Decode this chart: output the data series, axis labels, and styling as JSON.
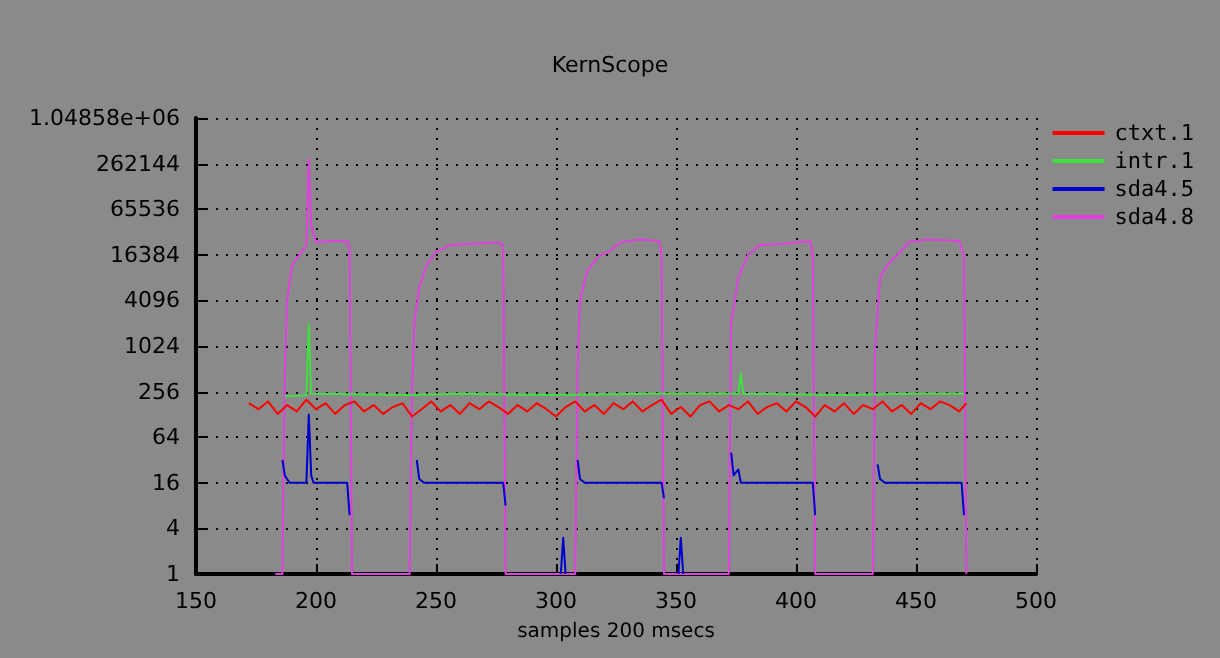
{
  "chart_data": {
    "type": "line",
    "title": "KernScope",
    "xlabel": "samples 200 msecs",
    "xlim": [
      150,
      500
    ],
    "xticks": [
      150,
      200,
      250,
      300,
      350,
      400,
      450,
      500
    ],
    "ylim": [
      1,
      1048576
    ],
    "yticks": [
      1,
      4,
      16,
      64,
      256,
      1024,
      4096,
      16384,
      65536,
      262144,
      {
        "value": 1048576,
        "label": "1.04858e+06"
      }
    ],
    "log": "y",
    "grid": true,
    "legend": "top right",
    "marker": "none",
    "line_style": "solid",
    "series": [
      {
        "name": "ctxt.1",
        "color": "#ff0000",
        "x": [
          172,
          176,
          180,
          184,
          188,
          192,
          196,
          200,
          204,
          208,
          212,
          216,
          220,
          224,
          228,
          232,
          236,
          240,
          244,
          248,
          252,
          256,
          260,
          264,
          268,
          272,
          276,
          280,
          284,
          288,
          292,
          296,
          300,
          304,
          308,
          312,
          316,
          320,
          324,
          328,
          332,
          336,
          340,
          344,
          348,
          352,
          356,
          360,
          364,
          368,
          372,
          376,
          380,
          384,
          388,
          392,
          396,
          400,
          404,
          408,
          412,
          416,
          420,
          424,
          428,
          432,
          436,
          440,
          444,
          448,
          452,
          456,
          460,
          464,
          468,
          471
        ],
        "values": [
          180,
          150,
          190,
          130,
          170,
          140,
          200,
          150,
          180,
          130,
          170,
          190,
          140,
          170,
          130,
          160,
          180,
          120,
          150,
          190,
          140,
          170,
          130,
          180,
          150,
          190,
          160,
          130,
          170,
          140,
          180,
          150,
          120,
          160,
          190,
          140,
          170,
          130,
          180,
          150,
          190,
          140,
          170,
          200,
          130,
          160,
          120,
          170,
          190,
          140,
          170,
          150,
          190,
          130,
          160,
          180,
          140,
          190,
          160,
          120,
          170,
          140,
          180,
          130,
          170,
          150,
          190,
          140,
          170,
          130,
          180,
          150,
          190,
          170,
          140,
          180
        ]
      },
      {
        "name": "intr.1",
        "color": "#40e040",
        "x": [
          187,
          196,
          197,
          198,
          240,
          260,
          300,
          340,
          376,
          377,
          378,
          420,
          450,
          470
        ],
        "values": [
          220,
          230,
          2000,
          240,
          230,
          240,
          230,
          240,
          240,
          450,
          240,
          230,
          240,
          240
        ]
      },
      {
        "name": "sda4.5",
        "color": "#0000cc",
        "x": [
          186,
          187,
          189,
          196,
          197,
          198,
          199,
          213,
          214,
          215,
          242,
          243,
          245,
          278,
          279,
          280,
          302,
          303,
          304,
          305,
          309,
          310,
          312,
          344,
          345,
          346,
          351,
          352,
          353,
          354,
          373,
          374,
          376,
          377,
          407,
          408,
          409,
          434,
          435,
          437,
          469,
          470
        ],
        "values": [
          32,
          20,
          16,
          16,
          128,
          20,
          16,
          16,
          6,
          null,
          32,
          18,
          16,
          16,
          8,
          null,
          1,
          3,
          1,
          null,
          32,
          18,
          16,
          16,
          10,
          null,
          1,
          3,
          1,
          null,
          40,
          20,
          24,
          16,
          16,
          6,
          null,
          28,
          18,
          16,
          16,
          6
        ]
      },
      {
        "name": "sda4.8",
        "color": "#e040e0",
        "x": [
          183,
          186,
          187,
          188,
          190,
          194,
          196,
          197,
          198,
          200,
          206,
          213,
          214,
          215,
          238,
          239,
          240,
          241,
          243,
          246,
          250,
          256,
          265,
          276,
          278,
          279,
          306,
          308,
          309,
          310,
          313,
          318,
          322,
          327,
          335,
          343,
          344,
          345,
          371,
          372,
          373,
          376,
          380,
          385,
          395,
          406,
          407,
          408,
          431,
          432,
          433,
          435,
          438,
          442,
          447,
          455,
          468,
          470,
          471
        ],
        "values": [
          1,
          1,
          512,
          4096,
          12000,
          18000,
          22000,
          300000,
          40000,
          24000,
          25000,
          25000,
          20000,
          1,
          1,
          1,
          256,
          2048,
          6000,
          12000,
          18000,
          22000,
          23000,
          24000,
          22000,
          1,
          1,
          1,
          512,
          4096,
          10000,
          16000,
          18000,
          24000,
          26000,
          25000,
          16000,
          1,
          1,
          1,
          2048,
          8192,
          16384,
          22000,
          23000,
          25000,
          16000,
          1,
          1,
          1,
          1024,
          8192,
          12000,
          16000,
          24000,
          26000,
          25000,
          16000,
          1
        ]
      }
    ]
  }
}
